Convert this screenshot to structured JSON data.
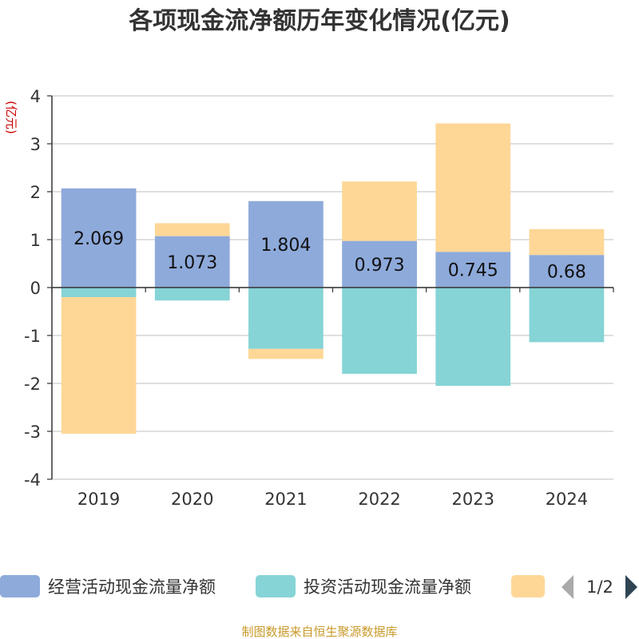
{
  "title": "各项现金流净额历年变化情况(亿元)",
  "y_unit": "(亿元)",
  "source": "制图数据来自恒生聚源数据库",
  "legend": {
    "items": [
      {
        "label": "经营活动现金流量净额",
        "color": "#8eaadb"
      },
      {
        "label": "投资活动现金流量净额",
        "color": "#86d4d6"
      },
      {
        "label": "",
        "color": "#fed797"
      }
    ],
    "page": "1/2"
  },
  "chart_data": {
    "type": "bar",
    "stacked": true,
    "categories": [
      "2019",
      "2020",
      "2021",
      "2022",
      "2023",
      "2024"
    ],
    "ylim": [
      -4,
      4
    ],
    "yticks": [
      4,
      3,
      2,
      1,
      0,
      -1,
      -2,
      -3,
      -4
    ],
    "grid": true,
    "series": [
      {
        "name": "经营活动现金流量净额",
        "color": "#8eaadb",
        "values": [
          2.069,
          1.073,
          1.804,
          0.973,
          0.745,
          0.68
        ],
        "labels": [
          "2.069",
          "1.073",
          "1.804",
          "0.973",
          "0.745",
          "0.68"
        ]
      },
      {
        "name": "投资活动现金流量净额",
        "color": "#86d4d6",
        "values": [
          -0.2,
          -0.27,
          -1.28,
          -1.8,
          -2.05,
          -1.14
        ]
      },
      {
        "name": "",
        "color": "#fed797",
        "values": [
          -2.85,
          0.27,
          -0.21,
          1.24,
          2.68,
          0.54
        ]
      }
    ]
  }
}
